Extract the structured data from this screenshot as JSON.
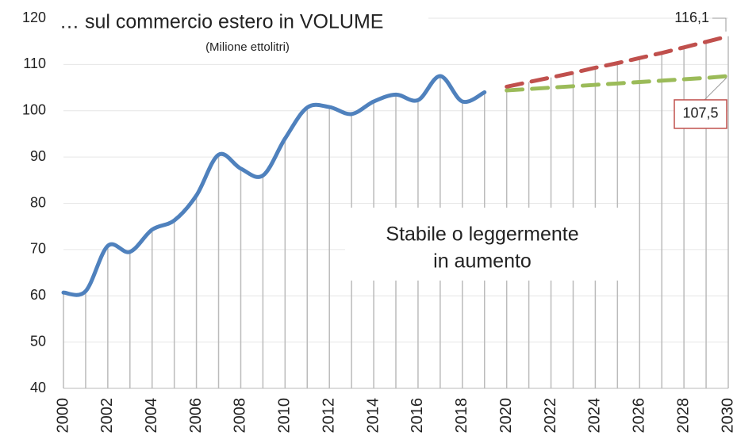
{
  "chart_data": {
    "type": "line",
    "title": "… sul commercio estero in VOLUME",
    "subtitle": "(Milione ettolitri)",
    "annotation": [
      "Stabile o leggermente",
      "in aumento"
    ],
    "x": [
      2000,
      2001,
      2002,
      2003,
      2004,
      2005,
      2006,
      2007,
      2008,
      2009,
      2010,
      2011,
      2012,
      2013,
      2014,
      2015,
      2016,
      2017,
      2018,
      2019,
      2020,
      2021,
      2022,
      2023,
      2024,
      2025,
      2026,
      2027,
      2028,
      2029,
      2030
    ],
    "series": [
      {
        "color": "#4f81bd",
        "dashed": false,
        "values": [
          60.7,
          61,
          70.8,
          69.5,
          74.3,
          76.3,
          81.7,
          90.5,
          87.5,
          86,
          94,
          100.7,
          100.8,
          99.3,
          102,
          103.5,
          102.3,
          107.5,
          102,
          104,
          null,
          null,
          null,
          null,
          null,
          null,
          null,
          null,
          null,
          null,
          null
        ]
      },
      {
        "color": "#c0504d",
        "dashed": true,
        "values": [
          null,
          null,
          null,
          null,
          null,
          null,
          null,
          null,
          null,
          null,
          null,
          null,
          null,
          null,
          null,
          null,
          null,
          null,
          null,
          null,
          105.2,
          106.2,
          107.2,
          108.2,
          109.3,
          110.3,
          111.4,
          112.5,
          113.7,
          114.9,
          116.1
        ],
        "value_labels": [
          null,
          null,
          null,
          null,
          null,
          null,
          null,
          null,
          null,
          null,
          null,
          null,
          null,
          null,
          null,
          null,
          null,
          null,
          null,
          null,
          null,
          null,
          null,
          null,
          null,
          null,
          null,
          null,
          null,
          null,
          "116,1"
        ]
      },
      {
        "color": "#9bbb59",
        "dashed": true,
        "values": [
          null,
          null,
          null,
          null,
          null,
          null,
          null,
          null,
          null,
          null,
          null,
          null,
          null,
          null,
          null,
          null,
          null,
          null,
          null,
          null,
          104.4,
          104.7,
          105.0,
          105.3,
          105.6,
          105.9,
          106.2,
          106.5,
          106.8,
          107.1,
          107.5
        ],
        "value_labels": [
          null,
          null,
          null,
          null,
          null,
          null,
          null,
          null,
          null,
          null,
          null,
          null,
          null,
          null,
          null,
          null,
          null,
          null,
          null,
          null,
          null,
          null,
          null,
          null,
          null,
          null,
          null,
          null,
          null,
          null,
          "107,5"
        ]
      }
    ],
    "xlim": [
      2000,
      2030
    ],
    "xticks": [
      2000,
      2002,
      2004,
      2006,
      2008,
      2010,
      2012,
      2014,
      2016,
      2018,
      2020,
      2022,
      2024,
      2026,
      2028,
      2030
    ],
    "ylim": [
      40,
      120
    ],
    "yticks": [
      40,
      50,
      60,
      70,
      80,
      90,
      100,
      110,
      120
    ],
    "grid": true
  }
}
